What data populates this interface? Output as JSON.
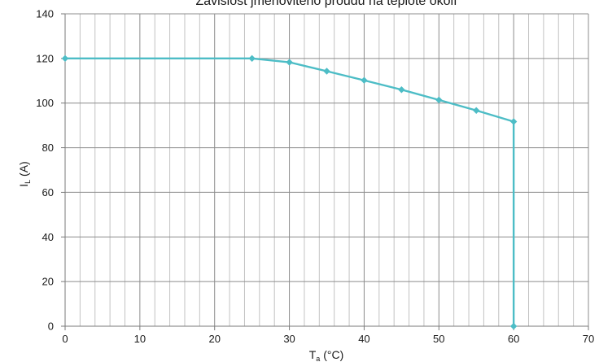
{
  "chart_data": {
    "type": "line",
    "title": "Závislost jmenovitého proudu na teplotě okolí",
    "xlabel": {
      "main": "T",
      "sub": "a",
      "unit": " (°C)"
    },
    "ylabel": {
      "main": "I",
      "sub": "L",
      "unit": " (A)"
    },
    "xlim": [
      0,
      70
    ],
    "ylim": [
      0,
      140
    ],
    "xticks": [
      0,
      10,
      20,
      30,
      40,
      50,
      60,
      70
    ],
    "yticks": [
      0,
      20,
      40,
      60,
      80,
      100,
      120,
      140
    ],
    "x_minor_step": 2,
    "grid": true,
    "series": [
      {
        "color": "#4dbdc6",
        "marker": "diamond",
        "points": [
          [
            0,
            120
          ],
          [
            25,
            120
          ],
          [
            30,
            118.3
          ],
          [
            35,
            114.3
          ],
          [
            40,
            110.2
          ],
          [
            45,
            106
          ],
          [
            50,
            101.4
          ],
          [
            55,
            96.7
          ],
          [
            60,
            91.7
          ],
          [
            60,
            0
          ]
        ]
      }
    ]
  }
}
